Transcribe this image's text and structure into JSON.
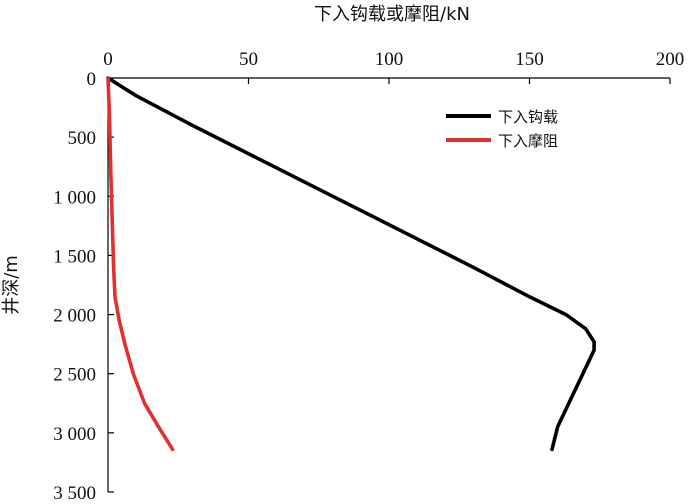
{
  "chart_data": {
    "type": "line",
    "x_axis_position": "top",
    "y_axis_inverted": true,
    "xlabel": "下入钩载或摩阻/kN",
    "ylabel": "井深/m",
    "xlim": [
      0,
      200
    ],
    "ylim": [
      0,
      3500
    ],
    "x_ticks": [
      0,
      50,
      100,
      150,
      200
    ],
    "x_tick_labels": [
      "0",
      "50",
      "100",
      "150",
      "200"
    ],
    "y_ticks": [
      0,
      500,
      1000,
      1500,
      2000,
      2500,
      3000,
      3500
    ],
    "y_tick_labels": [
      "0",
      "500",
      "1 000",
      "1 500",
      "2 000",
      "2 500",
      "3 000",
      "3 500"
    ],
    "grid": false,
    "legend_position": "top-right",
    "series": [
      {
        "name": "下入钩载",
        "color": "#000000",
        "points": [
          [
            0,
            0
          ],
          [
            10,
            150
          ],
          [
            30,
            400
          ],
          [
            55,
            700
          ],
          [
            80,
            1000
          ],
          [
            105,
            1300
          ],
          [
            130,
            1600
          ],
          [
            150,
            1850
          ],
          [
            163,
            2000
          ],
          [
            170,
            2120
          ],
          [
            173,
            2230
          ],
          [
            173,
            2300
          ],
          [
            170,
            2450
          ],
          [
            165,
            2700
          ],
          [
            160,
            2950
          ],
          [
            158,
            3140
          ]
        ]
      },
      {
        "name": "下入摩阻",
        "color": "#e03030",
        "points": [
          [
            0,
            0
          ],
          [
            0.5,
            300
          ],
          [
            1,
            800
          ],
          [
            1.5,
            1200
          ],
          [
            2,
            1600
          ],
          [
            2.5,
            1850
          ],
          [
            4,
            2050
          ],
          [
            6,
            2250
          ],
          [
            9,
            2500
          ],
          [
            13,
            2750
          ],
          [
            18,
            2950
          ],
          [
            23,
            3140
          ]
        ]
      }
    ]
  }
}
